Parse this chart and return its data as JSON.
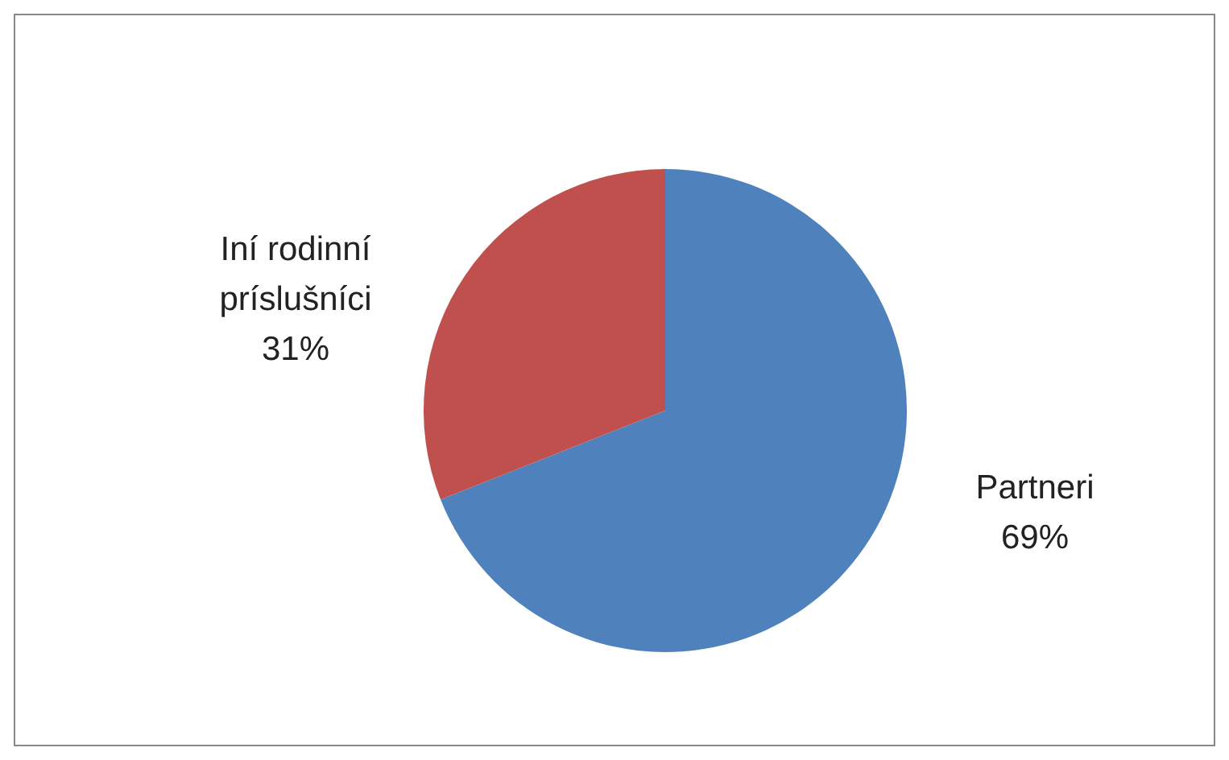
{
  "chart_data": {
    "type": "pie",
    "categories": [
      "Partneri",
      "Iní rodinní príslušníci"
    ],
    "values": [
      69,
      31
    ],
    "colors": [
      "#4f81bd",
      "#c0504d"
    ],
    "value_labels": [
      "69%",
      "31%"
    ]
  }
}
